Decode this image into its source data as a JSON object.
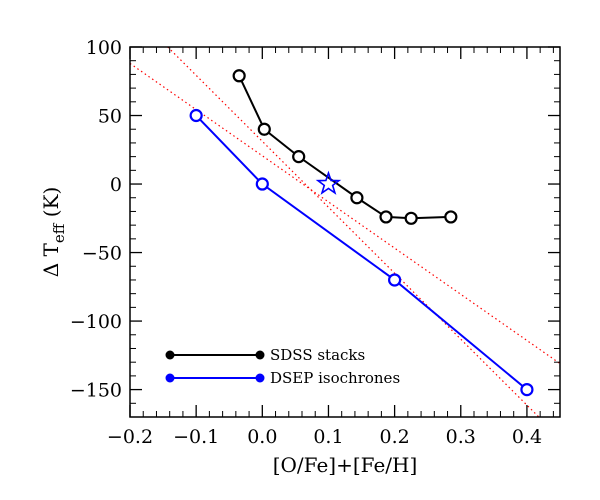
{
  "chart_data": {
    "type": "line",
    "xlabel": "[O/Fe]+[Fe/H]",
    "ylabel": {
      "main": "Δ T",
      "sub": "eff",
      "unit": " (K)"
    },
    "xlim": [
      -0.2,
      0.45
    ],
    "ylim": [
      -170,
      100
    ],
    "xticks": [
      -0.2,
      -0.1,
      0.0,
      0.1,
      0.2,
      0.3,
      0.4
    ],
    "xtick_labels": [
      "−0.2",
      "−0.1",
      "0.0",
      "0.1",
      "0.2",
      "0.3",
      "0.4"
    ],
    "yticks": [
      -150,
      -100,
      -50,
      0,
      50,
      100
    ],
    "ytick_labels": [
      "−150",
      "−100",
      "−50",
      "0",
      "50",
      "100"
    ],
    "series": [
      {
        "name": "SDSS stacks",
        "color": "#000000",
        "x": [
          -0.035,
          0.003,
          0.055,
          0.143,
          0.187,
          0.225,
          0.285
        ],
        "y": [
          79,
          40,
          20,
          -10,
          -24,
          -25,
          -24
        ]
      },
      {
        "name": "DSEP isochrones",
        "color": "#0000ff",
        "x": [
          -0.1,
          0.0,
          0.2,
          0.4
        ],
        "y": [
          50,
          0,
          -70,
          -150
        ]
      }
    ],
    "reference_lines": [
      {
        "color": "#ff0000",
        "style": "dotted",
        "x": [
          -0.2,
          0.45
        ],
        "y": [
          88,
          -131
        ]
      },
      {
        "color": "#ff0000",
        "style": "dotted",
        "x": [
          -0.143,
          0.418
        ],
        "y": [
          100,
          -170
        ]
      }
    ],
    "marker": {
      "shape": "star",
      "x": 0.1,
      "y": 0,
      "color": "#0000ff"
    },
    "legend": {
      "position": "bottom-left"
    },
    "grid": false
  }
}
